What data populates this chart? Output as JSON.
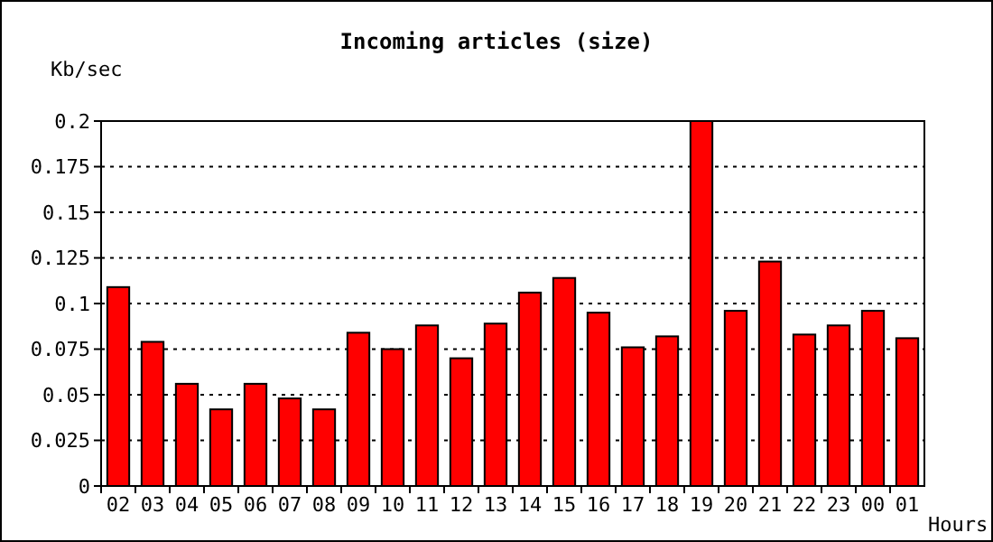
{
  "chart_data": {
    "type": "bar",
    "title": "Incoming articles (size)",
    "ylabel": "Kb/sec",
    "xlabel": "Hours",
    "categories": [
      "02",
      "03",
      "04",
      "05",
      "06",
      "07",
      "08",
      "09",
      "10",
      "11",
      "12",
      "13",
      "14",
      "15",
      "16",
      "17",
      "18",
      "19",
      "20",
      "21",
      "22",
      "23",
      "00",
      "01"
    ],
    "values": [
      0.109,
      0.079,
      0.056,
      0.042,
      0.056,
      0.048,
      0.042,
      0.084,
      0.075,
      0.088,
      0.07,
      0.089,
      0.106,
      0.114,
      0.095,
      0.076,
      0.082,
      0.2,
      0.096,
      0.123,
      0.083,
      0.088,
      0.096,
      0.081
    ],
    "color": "#ff0000",
    "ylim": [
      0,
      0.2
    ],
    "yticks": [
      0,
      0.025,
      0.05,
      0.075,
      0.1,
      0.125,
      0.15,
      0.175,
      0.2
    ],
    "grid": "y"
  }
}
